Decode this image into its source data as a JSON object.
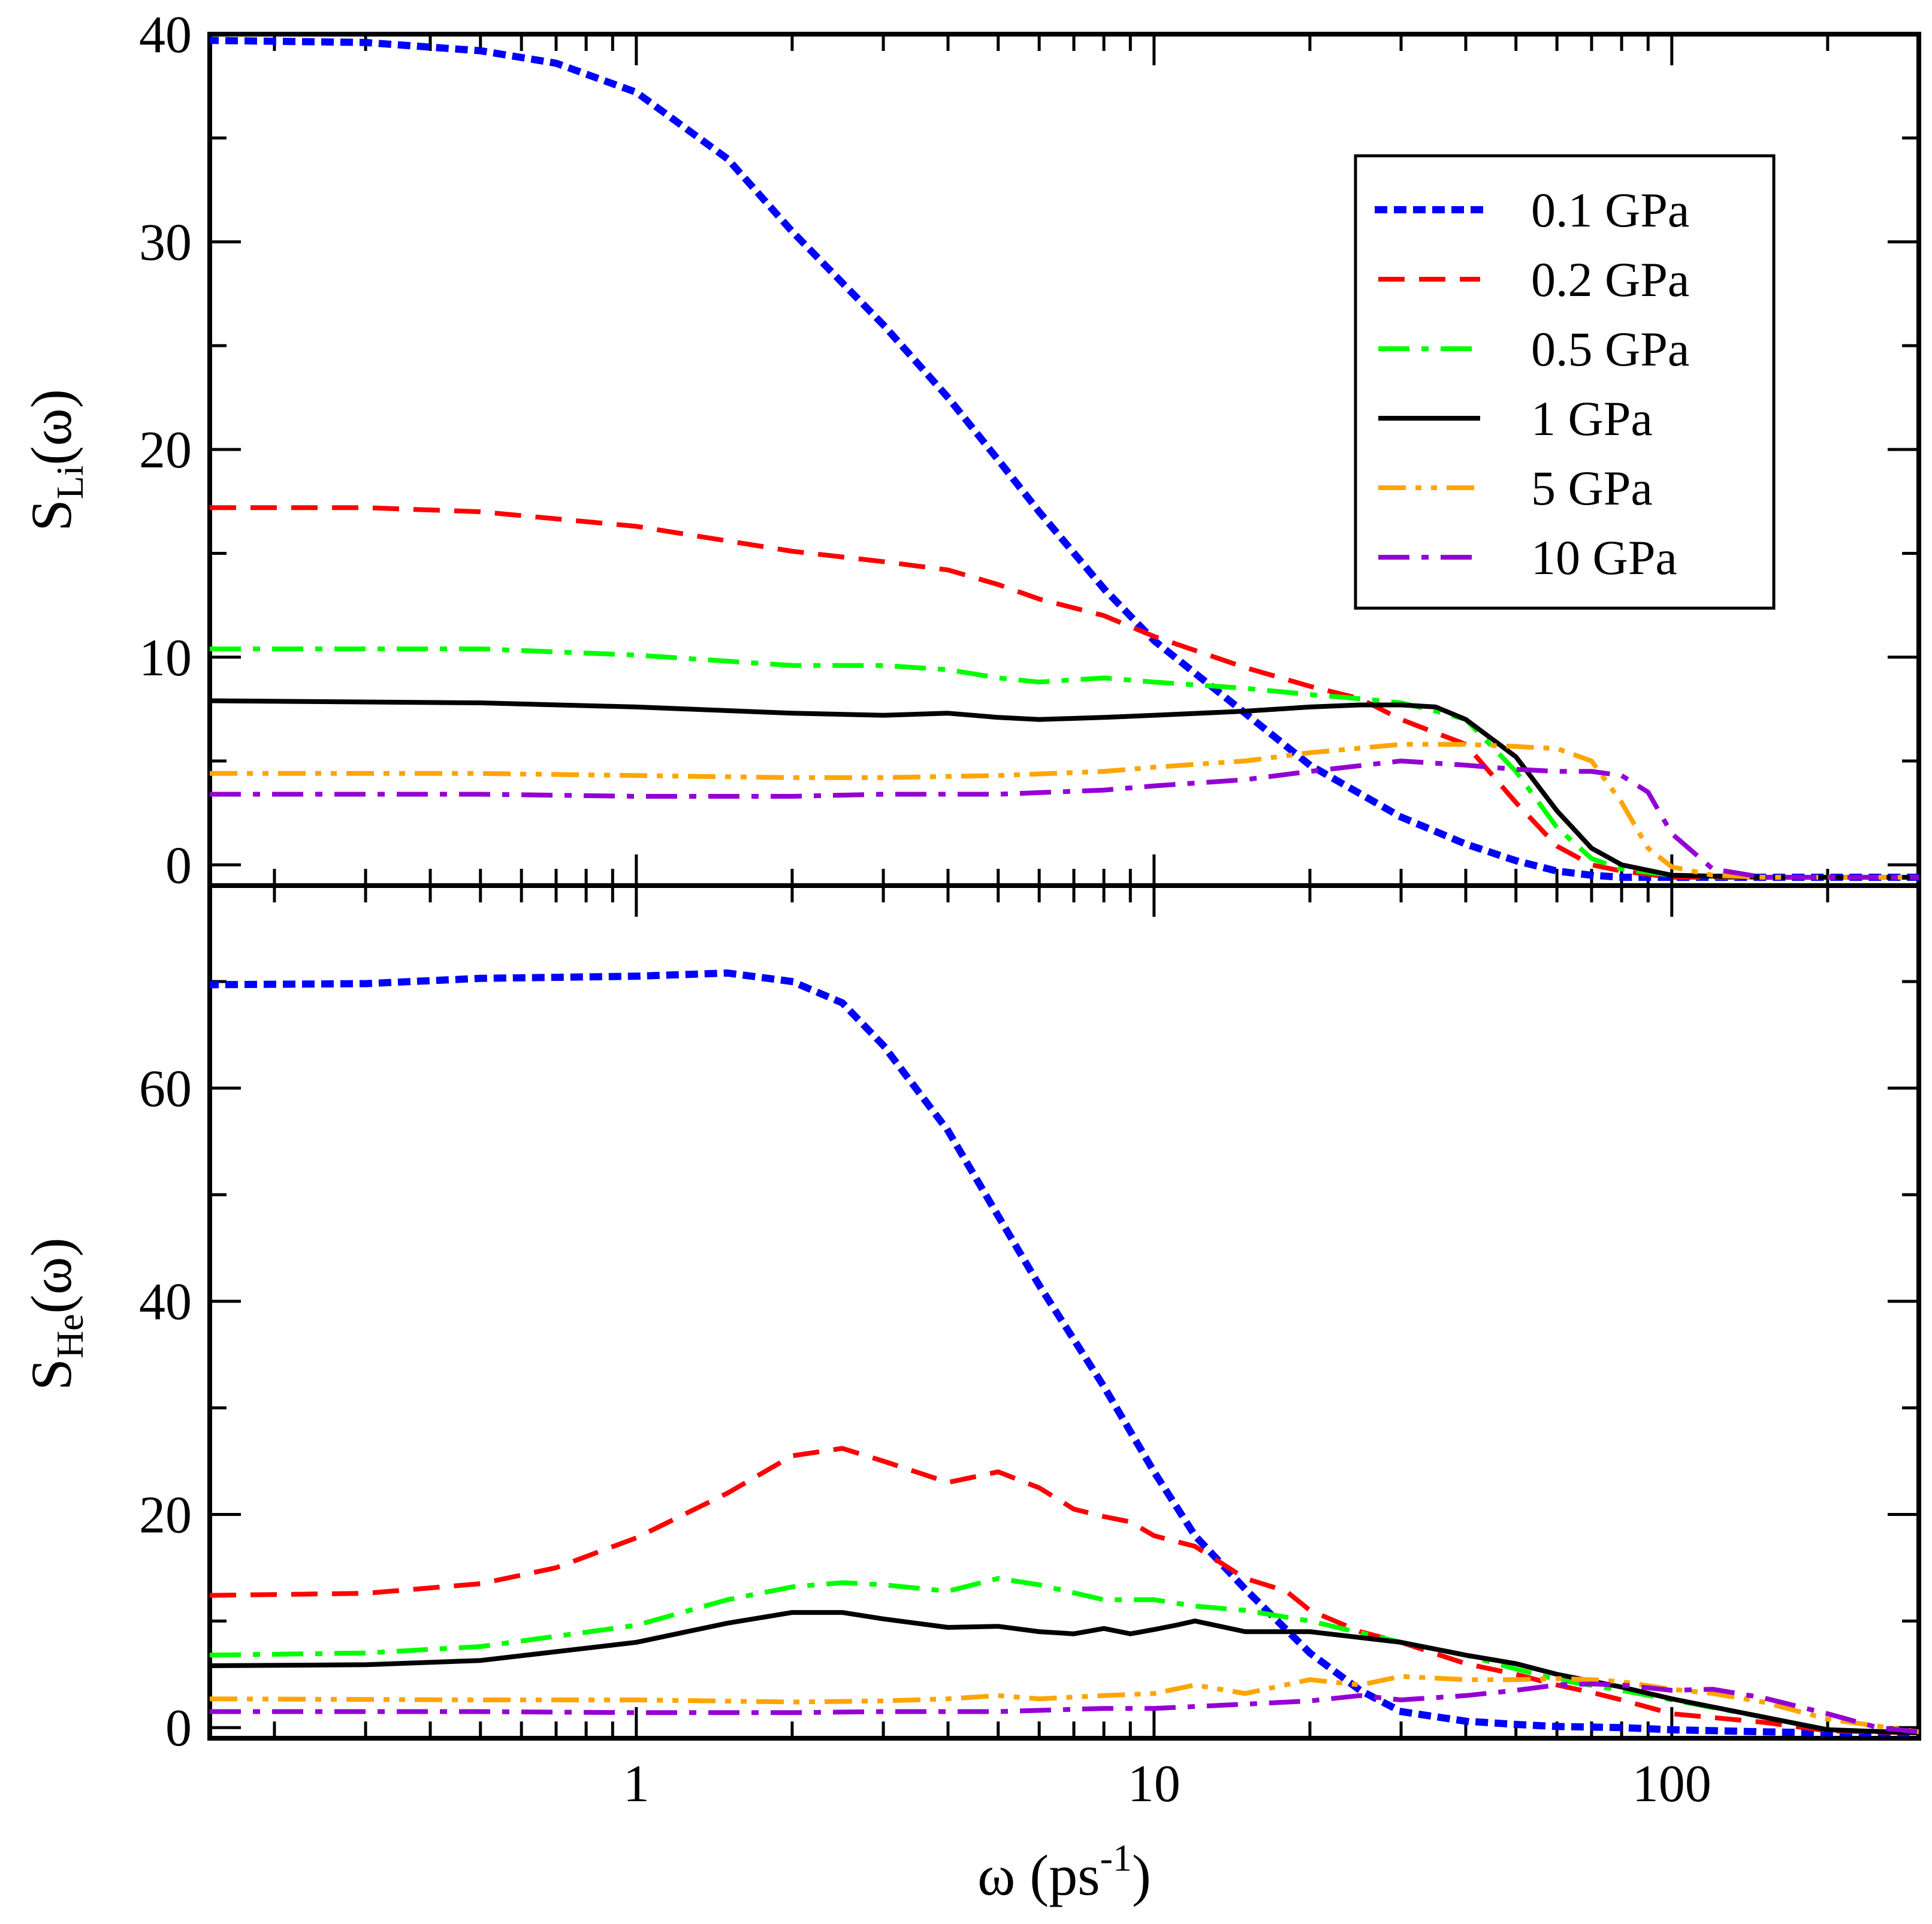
{
  "chart_data": [
    {
      "type": "line",
      "panel": "top",
      "ylabel": "S",
      "ylabel_sub": "Li",
      "ylabel_suffix": "(ω)",
      "xscale": "log",
      "xlim": [
        0.15,
        300
      ],
      "ylim": [
        -1,
        40
      ],
      "yticks": [
        "0",
        "10",
        "20",
        "30",
        "40"
      ],
      "legend_placement": "top-right",
      "series": [
        {
          "name": "0.1 GPa",
          "color": "#0000ff",
          "style": "dotted",
          "x": [
            0.15,
            0.3,
            0.5,
            0.7,
            1,
            1.5,
            2,
            3,
            4,
            5,
            6,
            8,
            10,
            15,
            20,
            30,
            40,
            50,
            60,
            70,
            80,
            100,
            150,
            200,
            300
          ],
          "y": [
            39.7,
            39.6,
            39.2,
            38.6,
            37.2,
            34.0,
            30.5,
            26.0,
            22.5,
            19.5,
            17.0,
            13.3,
            10.8,
            7.3,
            4.8,
            2.3,
            1.0,
            0.2,
            -0.3,
            -0.5,
            -0.6,
            -0.6,
            -0.6,
            -0.6,
            -0.6
          ]
        },
        {
          "name": "0.2 GPa",
          "color": "#ff0000",
          "style": "dashed",
          "x": [
            0.15,
            0.3,
            0.5,
            1,
            2,
            3,
            4,
            5,
            6,
            8,
            10,
            15,
            20,
            25,
            30,
            40,
            50,
            60,
            70,
            80,
            100,
            150,
            200,
            300
          ],
          "y": [
            17.2,
            17.2,
            17.0,
            16.3,
            15.1,
            14.6,
            14.2,
            13.5,
            12.8,
            12.0,
            11.0,
            9.5,
            8.6,
            8.0,
            7.0,
            5.8,
            3.0,
            0.9,
            0.0,
            -0.3,
            -0.6,
            -0.6,
            -0.6,
            -0.6
          ]
        },
        {
          "name": "0.5 GPa",
          "color": "#00ff00",
          "style": "dashdot",
          "x": [
            0.15,
            0.5,
            1,
            2,
            3,
            4,
            5,
            6,
            8,
            10,
            15,
            20,
            25,
            30,
            35,
            40,
            50,
            60,
            70,
            80,
            100,
            150,
            200,
            300
          ],
          "y": [
            10.4,
            10.4,
            10.1,
            9.6,
            9.6,
            9.4,
            9.0,
            8.8,
            9.0,
            8.8,
            8.5,
            8.2,
            8.0,
            7.8,
            7.4,
            7.0,
            4.5,
            1.8,
            0.3,
            -0.2,
            -0.5,
            -0.6,
            -0.6,
            -0.6
          ]
        },
        {
          "name": "1 GPa",
          "color": "#000000",
          "style": "solid",
          "x": [
            0.15,
            0.5,
            1,
            2,
            3,
            4,
            5,
            6,
            8,
            10,
            15,
            20,
            25,
            30,
            35,
            40,
            50,
            60,
            70,
            80,
            100,
            150,
            200,
            300
          ],
          "y": [
            7.9,
            7.8,
            7.6,
            7.3,
            7.2,
            7.3,
            7.1,
            7.0,
            7.1,
            7.2,
            7.4,
            7.6,
            7.7,
            7.7,
            7.6,
            7.0,
            5.2,
            2.6,
            0.8,
            0.0,
            -0.5,
            -0.6,
            -0.6,
            -0.6
          ]
        },
        {
          "name": "5 GPa",
          "color": "#ffa500",
          "style": "dashdotdot",
          "x": [
            0.15,
            0.5,
            1,
            2,
            3,
            5,
            8,
            10,
            15,
            20,
            30,
            40,
            50,
            60,
            70,
            80,
            90,
            100,
            120,
            150,
            200,
            300
          ],
          "y": [
            4.4,
            4.4,
            4.3,
            4.2,
            4.2,
            4.3,
            4.5,
            4.7,
            5.0,
            5.4,
            5.8,
            5.8,
            5.7,
            5.6,
            5.0,
            3.0,
            0.8,
            -0.1,
            -0.5,
            -0.6,
            -0.6,
            -0.6
          ]
        },
        {
          "name": "10 GPa",
          "color": "#9400d3",
          "style": "dashdot",
          "x": [
            0.15,
            0.5,
            1,
            2,
            3,
            5,
            8,
            10,
            15,
            20,
            30,
            40,
            50,
            60,
            70,
            80,
            90,
            100,
            120,
            150,
            200,
            300
          ],
          "y": [
            3.4,
            3.4,
            3.3,
            3.3,
            3.4,
            3.4,
            3.6,
            3.8,
            4.1,
            4.5,
            5.0,
            4.8,
            4.6,
            4.5,
            4.5,
            4.3,
            3.5,
            1.5,
            -0.2,
            -0.6,
            -0.6,
            -0.6
          ]
        }
      ]
    },
    {
      "type": "line",
      "panel": "bottom",
      "ylabel": "S",
      "ylabel_sub": "He",
      "ylabel_suffix": "(ω)",
      "xlabel": "ω (ps",
      "xlabel_sup": "-1",
      "xlabel_suffix": ")",
      "xscale": "log",
      "xlim": [
        0.15,
        300
      ],
      "ylim": [
        -1,
        79
      ],
      "yticks": [
        "0",
        "20",
        "40",
        "60"
      ],
      "xticks": [
        "1",
        "10",
        "100"
      ],
      "series": [
        {
          "name": "0.1 GPa",
          "color": "#0000ff",
          "style": "dotted",
          "x": [
            0.15,
            0.3,
            0.5,
            1,
            1.5,
            2,
            2.5,
            3,
            4,
            5,
            6,
            8,
            10,
            12,
            15,
            20,
            25,
            30,
            40,
            50,
            60,
            80,
            100,
            150,
            200,
            300
          ],
          "y": [
            69.7,
            69.8,
            70.3,
            70.5,
            70.8,
            70.0,
            68.0,
            64.0,
            56.0,
            48.0,
            41.5,
            32.0,
            24.0,
            18.0,
            13.0,
            7.0,
            3.5,
            1.5,
            0.6,
            0.3,
            0.1,
            0.0,
            -0.2,
            -0.4,
            -0.5,
            -0.5
          ]
        },
        {
          "name": "0.2 GPa",
          "color": "#ff0000",
          "style": "dashed",
          "x": [
            0.15,
            0.3,
            0.5,
            0.7,
            1,
            1.5,
            2,
            2.5,
            3,
            4,
            5,
            6,
            7,
            8,
            9,
            10,
            12,
            15,
            18,
            20,
            25,
            30,
            40,
            50,
            60,
            70,
            80,
            100,
            150,
            200,
            300
          ],
          "y": [
            12.4,
            12.6,
            13.5,
            15.0,
            17.8,
            22.0,
            25.5,
            26.2,
            25.0,
            23.0,
            24.0,
            22.5,
            20.5,
            19.8,
            19.3,
            18.0,
            17.0,
            14.0,
            12.8,
            11.0,
            9.0,
            8.0,
            6.0,
            5.0,
            4.0,
            3.3,
            2.6,
            1.3,
            0.5,
            -0.3,
            -0.5
          ]
        },
        {
          "name": "0.5 GPa",
          "color": "#00ff00",
          "style": "dashdot",
          "x": [
            0.15,
            0.3,
            0.5,
            1,
            1.5,
            2,
            2.5,
            3,
            4,
            5,
            6,
            8,
            10,
            12,
            15,
            20,
            30,
            40,
            50,
            60,
            80,
            100,
            150,
            200,
            300
          ],
          "y": [
            6.8,
            7.0,
            7.6,
            9.6,
            12.0,
            13.2,
            13.6,
            13.4,
            12.8,
            14.0,
            13.4,
            12.0,
            12.0,
            11.4,
            11.0,
            10.0,
            8.0,
            6.8,
            5.5,
            4.5,
            3.5,
            2.6,
            1.0,
            -0.2,
            -0.5
          ]
        },
        {
          "name": "1 GPa",
          "color": "#000000",
          "style": "solid",
          "x": [
            0.15,
            0.3,
            0.5,
            1,
            1.5,
            2,
            2.5,
            3,
            4,
            5,
            6,
            7,
            8,
            9,
            10,
            11,
            12,
            15,
            20,
            30,
            40,
            50,
            60,
            80,
            100,
            150,
            200,
            300
          ],
          "y": [
            5.8,
            5.9,
            6.3,
            8.0,
            9.8,
            10.8,
            10.8,
            10.2,
            9.4,
            9.5,
            9.0,
            8.8,
            9.3,
            8.8,
            9.2,
            9.6,
            10.0,
            9.0,
            9.0,
            8.0,
            6.8,
            6.0,
            5.0,
            3.8,
            2.7,
            1.0,
            -0.2,
            -0.5
          ]
        },
        {
          "name": "5 GPa",
          "color": "#ffa500",
          "style": "dashdotdot",
          "x": [
            0.15,
            0.5,
            1,
            2,
            3,
            4,
            5,
            6,
            8,
            10,
            12,
            15,
            20,
            25,
            30,
            40,
            50,
            60,
            70,
            80,
            100,
            120,
            150,
            200,
            300
          ],
          "y": [
            2.7,
            2.6,
            2.6,
            2.4,
            2.5,
            2.7,
            3.0,
            2.7,
            3.0,
            3.2,
            4.0,
            3.2,
            4.5,
            4.0,
            4.8,
            4.5,
            4.5,
            4.6,
            4.5,
            4.3,
            3.6,
            3.2,
            2.4,
            0.8,
            -0.4
          ]
        },
        {
          "name": "10 GPa",
          "color": "#9400d3",
          "style": "dashdot",
          "x": [
            0.15,
            0.5,
            1,
            2,
            3,
            5,
            8,
            10,
            15,
            20,
            25,
            30,
            40,
            50,
            60,
            70,
            80,
            100,
            120,
            150,
            200,
            250,
            300
          ],
          "y": [
            1.5,
            1.5,
            1.4,
            1.4,
            1.5,
            1.5,
            1.8,
            1.8,
            2.2,
            2.5,
            3.0,
            2.6,
            3.0,
            3.5,
            4.0,
            4.1,
            4.0,
            3.5,
            3.6,
            2.8,
            1.3,
            0.0,
            -0.4
          ]
        }
      ]
    }
  ]
}
